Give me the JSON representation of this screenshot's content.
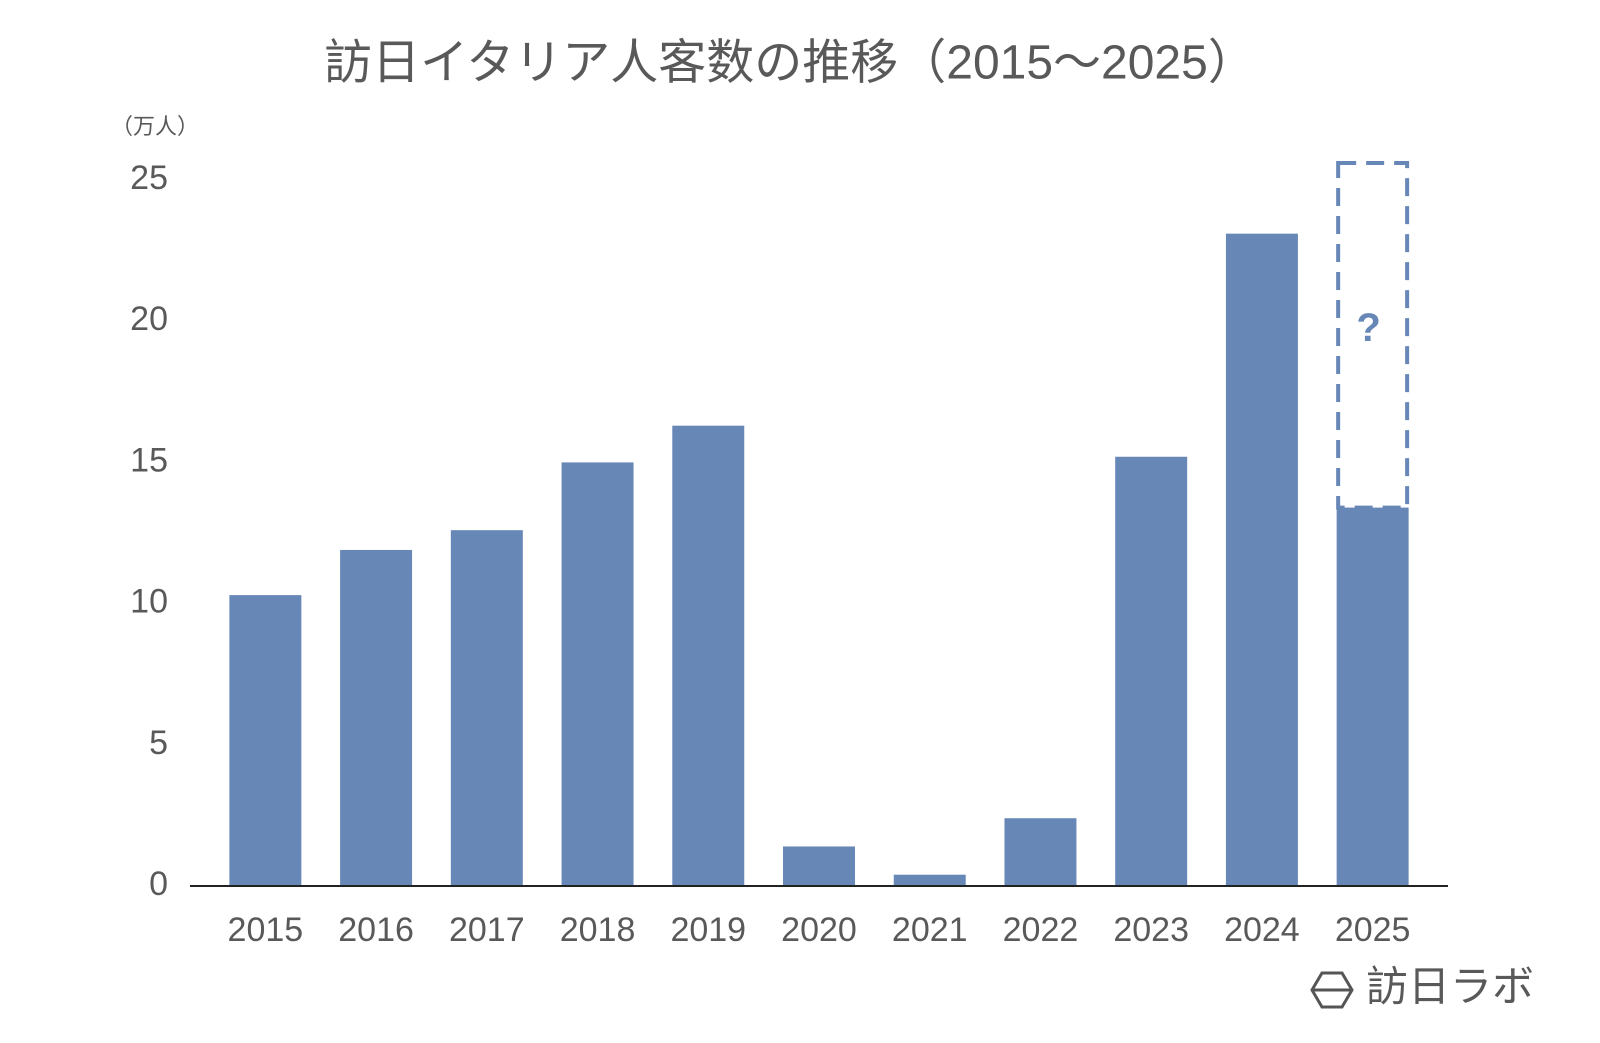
{
  "chart_data": {
    "type": "bar",
    "title": "訪日イタリア人客数の推移（2015～2025）",
    "y_label": "（万人）",
    "categories": [
      "2015",
      "2016",
      "2017",
      "2018",
      "2019",
      "2020",
      "2021",
      "2022",
      "2023",
      "2024",
      "2025"
    ],
    "values": [
      10.3,
      11.9,
      12.6,
      15.0,
      16.3,
      1.4,
      0.4,
      2.4,
      15.2,
      23.1,
      13.4
    ],
    "dashed_values": [
      null,
      null,
      null,
      null,
      null,
      null,
      null,
      null,
      null,
      null,
      12.2
    ],
    "annotation": "?",
    "color": "#6787b7",
    "ylim": [
      0,
      25
    ],
    "yticks": [
      0,
      5,
      10,
      15,
      20,
      25
    ],
    "grid": false,
    "watermark": "訪日ラボ"
  }
}
